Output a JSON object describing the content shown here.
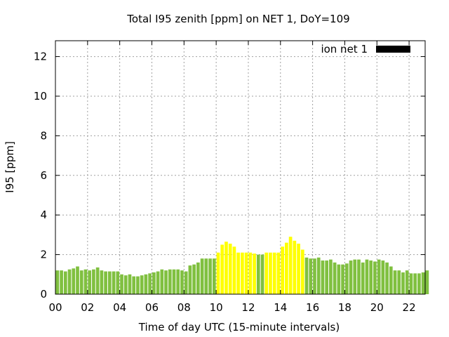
{
  "chart_data": {
    "type": "bar",
    "title": "Total I95 zenith [ppm] on NET 1, DoY=109",
    "xlabel": "Time of day UTC (15-minute intervals)",
    "ylabel": "I95 [ppm]",
    "xlim": [
      0,
      23
    ],
    "ylim": [
      0,
      12.8
    ],
    "xticks": [
      "00",
      "02",
      "04",
      "06",
      "08",
      "10",
      "12",
      "14",
      "16",
      "18",
      "20",
      "22"
    ],
    "yticks": [
      "0",
      "2",
      "4",
      "6",
      "8",
      "10",
      "12"
    ],
    "grid": true,
    "legend": {
      "label": "ion net 1",
      "position": "top-right",
      "color": "#000000"
    },
    "colors": {
      "normal": "#80c040",
      "elevated": "#ffff00",
      "grid": "#a0a0a0"
    },
    "bar_interval_hours": 0.25,
    "values": [
      1.2,
      1.2,
      1.15,
      1.25,
      1.3,
      1.4,
      1.2,
      1.25,
      1.2,
      1.25,
      1.35,
      1.2,
      1.15,
      1.15,
      1.15,
      1.15,
      1.0,
      0.95,
      1.0,
      0.9,
      0.9,
      0.95,
      1.0,
      1.05,
      1.1,
      1.15,
      1.25,
      1.2,
      1.25,
      1.25,
      1.25,
      1.2,
      1.15,
      1.45,
      1.5,
      1.6,
      1.8,
      1.8,
      1.8,
      1.8,
      2.1,
      2.5,
      2.65,
      2.55,
      2.4,
      2.1,
      2.1,
      2.1,
      2.1,
      2.05,
      2.0,
      2.0,
      2.1,
      2.1,
      2.1,
      2.1,
      2.4,
      2.6,
      2.9,
      2.7,
      2.55,
      2.25,
      1.85,
      1.8,
      1.8,
      1.85,
      1.7,
      1.7,
      1.75,
      1.6,
      1.5,
      1.5,
      1.55,
      1.7,
      1.75,
      1.75,
      1.6,
      1.75,
      1.7,
      1.65,
      1.75,
      1.7,
      1.6,
      1.4,
      1.2,
      1.2,
      1.1,
      1.2,
      1.05,
      1.05,
      1.05,
      1.1,
      1.2
    ],
    "elevated_flags": [
      0,
      0,
      0,
      0,
      0,
      0,
      0,
      0,
      0,
      0,
      0,
      0,
      0,
      0,
      0,
      0,
      0,
      0,
      0,
      0,
      0,
      0,
      0,
      0,
      0,
      0,
      0,
      0,
      0,
      0,
      0,
      0,
      0,
      0,
      0,
      0,
      0,
      0,
      0,
      0,
      1,
      1,
      1,
      1,
      1,
      1,
      1,
      1,
      1,
      1,
      0,
      0,
      1,
      1,
      1,
      1,
      1,
      1,
      1,
      1,
      1,
      1,
      0,
      0,
      0,
      0,
      0,
      0,
      0,
      0,
      0,
      0,
      0,
      0,
      0,
      0,
      0,
      0,
      0,
      0,
      0,
      0,
      0,
      0,
      0,
      0,
      0,
      0,
      0,
      0,
      0,
      0,
      0
    ]
  }
}
